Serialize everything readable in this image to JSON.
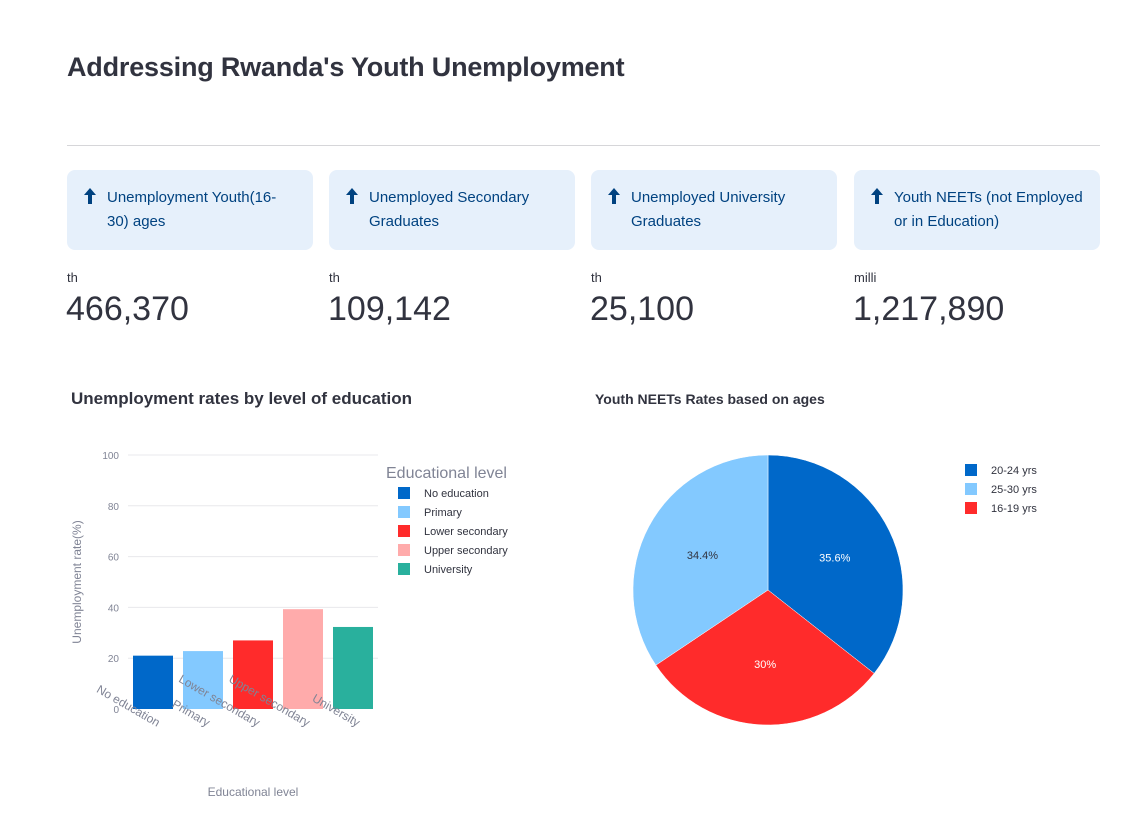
{
  "page": {
    "title": "Addressing Rwanda's Youth Unemployment"
  },
  "metrics": [
    {
      "card_label": "Unemployment Youth(16-30) ages",
      "card_line1": "Unemployment Youth(16-",
      "card_line2": "30) ages",
      "unit": "th",
      "value": "466,370"
    },
    {
      "card_label": "Unemployed Secondary Graduates",
      "card_line1": "Unemployed Secondary",
      "card_line2": "Graduates",
      "unit": "th",
      "value": "109,142"
    },
    {
      "card_label": "Unemployed University Graduates",
      "card_line1": "Unemployed University",
      "card_line2": "Graduates",
      "unit": "th",
      "value": "25,100"
    },
    {
      "card_label": "Youth NEETs (not Employed or in Education)",
      "card_line1": "Youth NEETs (not Employed",
      "card_line2": "or in Education)",
      "unit": "milli",
      "value": "1,217,890"
    }
  ],
  "icons": {
    "metric_card_icon": "arrow-up-icon"
  },
  "colors": {
    "card_background": "#e6f0fb",
    "card_text": "#004280",
    "dark_blue": "#0068c9",
    "light_blue": "#83c9ff",
    "red": "#ff2b2b",
    "pink": "#ffabab",
    "teal": "#29b09d"
  },
  "chart_data": [
    {
      "type": "bar",
      "title": "Unemployment rates by level of education",
      "xlabel": "Educational level",
      "ylabel": "Unemployment rate(%)",
      "ylim": [
        0,
        100
      ],
      "yticks": [
        0,
        20,
        40,
        60,
        80,
        100
      ],
      "grid": true,
      "categories": [
        "No education",
        "Primary",
        "Lower secondary",
        "Upper secondary",
        "University"
      ],
      "values": [
        21,
        22.8,
        27,
        39.3,
        32.3
      ],
      "colors": [
        "#0068c9",
        "#83c9ff",
        "#ff2b2b",
        "#ffabab",
        "#29b09d"
      ],
      "legend": {
        "title": "Educational level",
        "placement": "right",
        "entries": [
          "No education",
          "Primary",
          "Lower secondary",
          "Upper secondary",
          "University"
        ]
      }
    },
    {
      "type": "pie",
      "title": "Youth NEETs Rates based on ages",
      "slices": [
        {
          "label": "20-24 yrs",
          "value": 35.6,
          "display": "35.6%",
          "color": "#0068c9"
        },
        {
          "label": "16-19 yrs",
          "value": 30,
          "display": "30%",
          "color": "#ff2b2b"
        },
        {
          "label": "25-30 yrs",
          "value": 34.4,
          "display": "34.4%",
          "color": "#83c9ff"
        }
      ],
      "legend": {
        "placement": "top-right",
        "entries": [
          {
            "label": "20-24 yrs",
            "color": "#0068c9"
          },
          {
            "label": "25-30 yrs",
            "color": "#83c9ff"
          },
          {
            "label": "16-19 yrs",
            "color": "#ff2b2b"
          }
        ]
      }
    }
  ]
}
